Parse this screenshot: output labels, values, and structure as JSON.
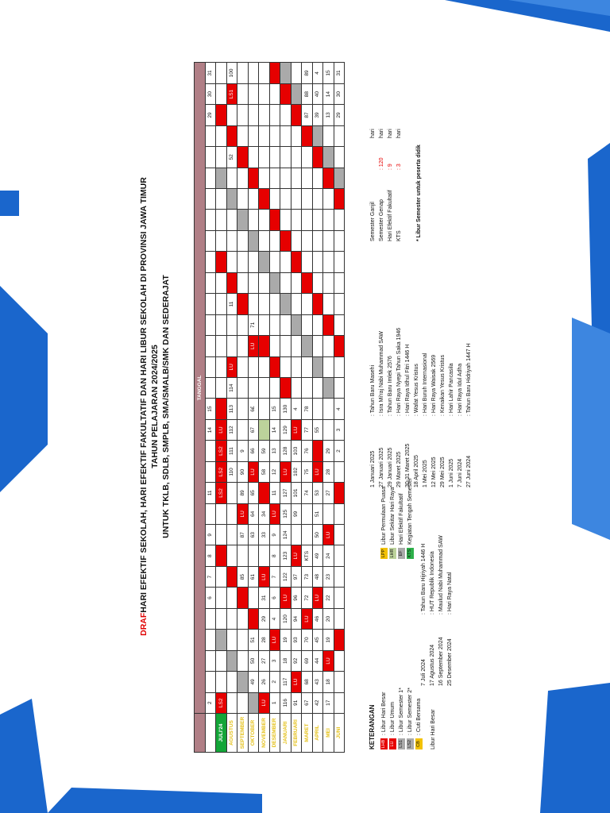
{
  "title": {
    "draft": "DRAF",
    "line1": "HARI EFEKTIF SEKOLAH, HARI EFEKTIF FAKULTATIF DAN HARI LIBUR SEKOLAH DI PROVINSI JAWA TIMUR",
    "line2": "TAHUN PELAJARAN 2024/2025",
    "line3": "UNTUK TKLB, SDLB, SMPLB, SMA/SMALB/SMK DAN SEDERAJAT"
  },
  "grid": {
    "header_label": "TANGGAL",
    "day_headers": [
      "2",
      "",
      "",
      "",
      "",
      "6",
      "7",
      "8",
      "9",
      "",
      "11",
      "",
      "",
      "14",
      "15",
      "",
      "",
      "",
      "",
      "",
      "",
      "",
      "",
      "",
      "",
      "",
      "",
      "",
      "29",
      "30",
      "31"
    ],
    "months": [
      {
        "label": "JULI'24",
        "cells": [
          "LS2",
          "",
          "",
          "",
          "",
          "",
          "",
          "",
          "",
          "",
          "LS2",
          "LS2",
          "LS2",
          "LU",
          "",
          "",
          "",
          "",
          "",
          "",
          "",
          "",
          "",
          "",
          "",
          "",
          "",
          "",
          "",
          "",
          ""
        ]
      },
      {
        "label": "AGUSTUS",
        "cells": [
          "",
          "",
          "",
          "",
          "",
          "",
          "",
          "",
          "",
          "",
          "",
          "110",
          "111",
          "112",
          "113",
          "114",
          "LU",
          "",
          "",
          "11",
          "",
          "",
          "",
          "",
          "",
          "",
          "52",
          "",
          "",
          "LS1",
          "100"
        ]
      },
      {
        "label": "SEPTEMBER",
        "cells": [
          "",
          "",
          "",
          "",
          "",
          "",
          "85",
          "",
          "87",
          "LU",
          "89",
          "90",
          "9",
          "",
          "",
          "",
          "",
          "",
          "",
          "",
          "",
          "",
          "",
          "",
          "",
          "",
          "",
          "",
          "",
          "",
          ""
        ]
      },
      {
        "label": "OKTOBER",
        "cells": [
          "",
          "49",
          "50",
          "51",
          "",
          "",
          "61",
          "",
          "63",
          "64",
          "65",
          "LU",
          "66",
          "67",
          "6£",
          "",
          "",
          "LU",
          "71",
          "",
          "",
          "",
          "",
          "",
          "",
          "",
          "",
          "",
          "",
          "",
          ""
        ]
      },
      {
        "label": "NOVEMBER",
        "cells": [
          "LU",
          "26",
          "27",
          "28",
          "29",
          "31",
          "LU",
          "",
          "33",
          "34",
          "",
          "58",
          "59",
          "",
          "",
          "",
          "",
          "",
          "",
          "",
          "",
          "",
          "",
          "",
          "",
          "",
          "",
          "",
          "",
          "",
          ""
        ]
      },
      {
        "label": "DESEMBER",
        "cells": [
          "1",
          "2",
          "3",
          "LU",
          "4",
          "6",
          "7",
          "8",
          "9",
          "LU",
          "11",
          "12",
          "13",
          "14",
          "15",
          "",
          "",
          "",
          "",
          "",
          "",
          "",
          "",
          "",
          "",
          "",
          "",
          "",
          "",
          "",
          ""
        ]
      },
      {
        "label": "JANUARI",
        "cells": [
          "116",
          "117",
          "18",
          "19",
          "120",
          "LU",
          "122",
          "123",
          "124",
          "125",
          "127",
          "LU",
          "128",
          "129",
          "130",
          "",
          "",
          "",
          "",
          "",
          "",
          "",
          "",
          "",
          "",
          "",
          "",
          "",
          "",
          "",
          ""
        ]
      },
      {
        "label": "FEBRUARI",
        "cells": [
          "91",
          "LU",
          "92",
          "93",
          "94",
          "96",
          "97",
          "LU",
          "",
          "99",
          "101",
          "102",
          "103",
          "LU",
          "4",
          "",
          "",
          "",
          "",
          "",
          "",
          "",
          "",
          "",
          "",
          "",
          "",
          "",
          "",
          "",
          ""
        ]
      },
      {
        "label": "MARET",
        "cells": [
          "67",
          "68",
          "69",
          "70",
          "LU",
          "72",
          "73",
          "KTS",
          "",
          "",
          "74",
          "75",
          "76",
          "77",
          "78",
          "",
          "",
          "",
          "",
          "",
          "",
          "",
          "",
          "",
          "",
          "",
          "",
          "",
          "87",
          "88",
          "89"
        ]
      },
      {
        "label": "APRIL",
        "cells": [
          "42",
          "43",
          "44",
          "45",
          "46",
          "LU",
          "48",
          "49",
          "50",
          "51",
          "53",
          "LU",
          "",
          "55",
          "",
          "",
          "",
          "",
          "",
          "",
          "",
          "",
          "",
          "",
          "",
          "",
          "",
          "",
          "39",
          "40",
          "4"
        ]
      },
      {
        "label": "MEI",
        "cells": [
          "17",
          "18",
          "LU",
          "19",
          "20",
          "22",
          "23",
          "24",
          "LU",
          "",
          "27",
          "28",
          "29",
          "",
          "",
          "",
          "",
          "",
          "",
          "",
          "",
          "",
          "",
          "",
          "",
          "",
          "",
          "",
          "13",
          "14",
          "15"
        ]
      },
      {
        "label": "JUNI",
        "cells": [
          "",
          "",
          "",
          "",
          "",
          "",
          "",
          "",
          "",
          "",
          "",
          "",
          "2",
          "3",
          "4",
          "",
          "",
          "",
          "",
          "",
          "",
          "",
          "",
          "",
          "",
          "",
          "",
          "",
          "29",
          "30",
          "31"
        ]
      }
    ]
  },
  "legend": {
    "title": "KETERANGAN",
    "col1": [
      {
        "box": "LHB",
        "text": ": Libur Hari Besar"
      },
      {
        "box": "LU",
        "text": ": Libur Umum"
      },
      {
        "box": "LS1",
        "text": ": Libur Semester 1*"
      },
      {
        "box": "LS2",
        "text": ": Libur Semester 2*"
      },
      {
        "box": "CB",
        "text": ": Cuti Bersama"
      }
    ],
    "col2": [
      {
        "box": "LPP",
        "text": "Libur Permulaan Puasa"
      },
      {
        "box": "LHR",
        "text": "Libur Sekitar Hari Raya"
      },
      {
        "box": "EF",
        "text": "Hari Efektif Fakultatif"
      },
      {
        "box": "KTS",
        "text": "Kegiatan Tengah Semester"
      }
    ],
    "hari_besar_label": "Libur Hari Besar",
    "holidays_a": [
      {
        "date": "7 Juli 2024",
        "name": ": Tahun Baru Hijriyah 1446 H"
      },
      {
        "date": "17 Agustus 2024",
        "name": ": HUT Republik Indonesia"
      },
      {
        "date": "16 September 2024",
        "name": ": Maulud Nabi Muhammad SAW"
      },
      {
        "date": "25 Desember 2024",
        "name": ": Hari Raya Natal"
      }
    ],
    "holidays_b": [
      {
        "date": "1 Januari 2025",
        "name": ": Tahun Baru Masehi"
      },
      {
        "date": "27 Januari 2025",
        "name": ": Isra Mi'raj Nabi Muhammad SAW"
      },
      {
        "date": "29 Januari 2025",
        "name": ": Tahun Baru Imlek 2576"
      },
      {
        "date": "29 Maret 2025",
        "name": ": Hari Raya Nyepi Tahun Saka 1946"
      },
      {
        "date": "30-31 Maret 2025",
        "name": ": Hari Raya Idhul Fitri 1446 H"
      },
      {
        "date": "18 April 2025",
        "name": ": Wafat Yesus Kristus"
      },
      {
        "date": "1 Mei 2025",
        "name": ": Hari Buruh Internasional"
      },
      {
        "date": "12 Mei 2025",
        "name": ": Hari Raya Waisak 2569"
      },
      {
        "date": "29 Mei 2025",
        "name": ": Kenaikan Yesus Kristus"
      },
      {
        "date": "1 Juni 2025",
        "name": ": Hari Lahir Pancasila"
      },
      {
        "date": "7 Juni 2024",
        "name": ": Hari Raya Idul Adha"
      },
      {
        "date": "27 Juni 2024",
        "name": ": Tahun Baru Hidriyah 1447 H"
      }
    ],
    "summary": [
      {
        "label": "Semester Ganjil",
        "value": "",
        "unit": "hari"
      },
      {
        "label": "Semester Genap",
        "value": ": 120",
        "unit": "hari"
      },
      {
        "label": "Hari Efektif Fakultatif",
        "value": ": 9",
        "unit": "hari"
      },
      {
        "label": "KTS",
        "value": ": 3",
        "unit": "hari"
      }
    ],
    "footnote": "* Libur Semester untuk peserta didik"
  },
  "colors": {
    "red": "#e60000",
    "gray": "#aaaaaa",
    "pink": "#e7bcc2",
    "green": "#2db04a",
    "yellow": "#f2c100",
    "blue_deco": "#1a66cc"
  }
}
